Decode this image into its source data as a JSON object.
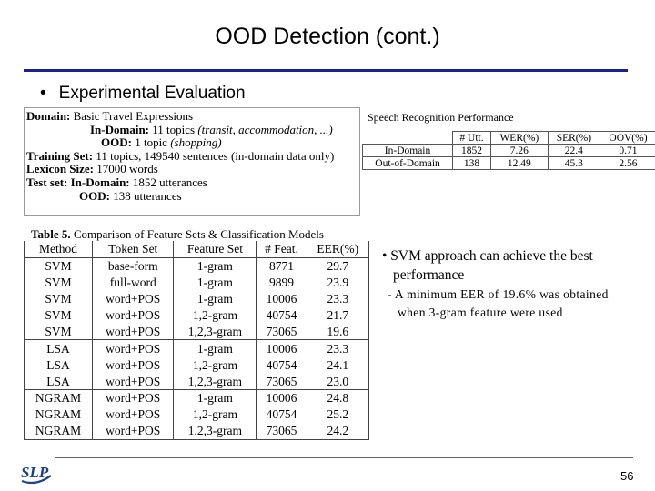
{
  "title": "OOD Detection (cont.)",
  "bullet": {
    "dot": "•",
    "text": "Experimental Evaluation"
  },
  "domain_box": {
    "domain_label": "Domain:",
    "domain_value": "Basic Travel Expressions",
    "in_domain_label": "In-Domain:",
    "in_domain_value": "11 topics",
    "in_domain_topics": "(transit, accommodation, ...)",
    "ood_label": "OOD:",
    "ood_value": "1 topic",
    "ood_topic": "(shopping)",
    "training_label": "Training Set:",
    "training_value": "11 topics, 149540 sentences (in-domain data only)",
    "lexicon_label": "Lexicon Size:",
    "lexicon_value": "17000 words",
    "test_label": "Test set:",
    "test_in_label": "In-Domain:",
    "test_in_value": "1852 utterances",
    "test_ood_label": "OOD:",
    "test_ood_value": "138 utterances"
  },
  "speech_recognition": {
    "caption": "Speech Recognition Performance",
    "headers": [
      "# Utt.",
      "WER(%)",
      "SER(%)",
      "OOV(%)"
    ],
    "rows": [
      {
        "label": "In-Domain",
        "utt": "1852",
        "wer": "7.26",
        "ser": "22.4",
        "oov": "0.71"
      },
      {
        "label": "Out-of-Domain",
        "utt": "138",
        "wer": "12.49",
        "ser": "45.3",
        "oov": "2.56"
      }
    ]
  },
  "table5": {
    "caption_bold": "Table 5.",
    "caption_text": "Comparison of Feature Sets & Classification Models",
    "headers": [
      "Method",
      "Token Set",
      "Feature Set",
      "# Feat.",
      "EER(%)"
    ],
    "rows": [
      [
        "SVM",
        "base-form",
        "1-gram",
        "8771",
        "29.7"
      ],
      [
        "SVM",
        "full-word",
        "1-gram",
        "9899",
        "23.9"
      ],
      [
        "SVM",
        "word+POS",
        "1-gram",
        "10006",
        "23.3"
      ],
      [
        "SVM",
        "word+POS",
        "1,2-gram",
        "40754",
        "21.7"
      ],
      [
        "SVM",
        "word+POS",
        "1,2,3-gram",
        "73065",
        "19.6"
      ],
      [
        "LSA",
        "word+POS",
        "1-gram",
        "10006",
        "23.3"
      ],
      [
        "LSA",
        "word+POS",
        "1,2-gram",
        "40754",
        "24.1"
      ],
      [
        "LSA",
        "word+POS",
        "1,2,3-gram",
        "73065",
        "23.0"
      ],
      [
        "NGRAM",
        "word+POS",
        "1-gram",
        "10006",
        "24.8"
      ],
      [
        "NGRAM",
        "word+POS",
        "1,2-gram",
        "40754",
        "25.2"
      ],
      [
        "NGRAM",
        "word+POS",
        "1,2,3-gram",
        "73065",
        "24.2"
      ]
    ]
  },
  "right_bullets": {
    "main_line1": "• SVM approach can achieve the best",
    "main_line2": "performance",
    "sub_line1": "- A minimum EER of 19.6% was obtained",
    "sub_line2": "when 3-gram feature were used"
  },
  "footer": {
    "logo_text": "SLP",
    "page_number": "56"
  },
  "colors": {
    "title_rule": "#1c1f8c",
    "logo": "#1c3f8c"
  }
}
